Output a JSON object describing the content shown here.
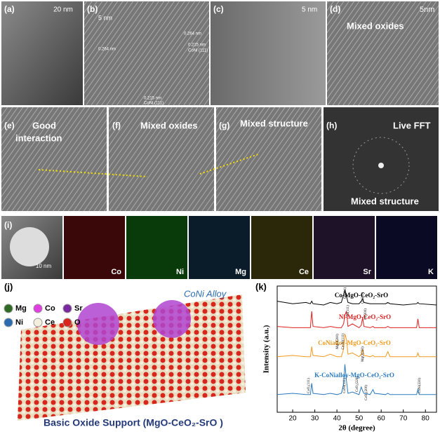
{
  "panels": {
    "a": {
      "label": "(a)",
      "scale": "20 nm"
    },
    "b": {
      "label": "(b)",
      "scale": "5 nm",
      "notes": [
        "0.264 nm",
        "0.215 nm",
        "CoNi (111)",
        "0.264 nm",
        "0.215 nm",
        "CoNi (111)"
      ]
    },
    "c": {
      "label": "(c)",
      "scale": "5 nm"
    },
    "d": {
      "label": "(d)",
      "scale": "5nm",
      "text": "Mixed oxides"
    },
    "e": {
      "label": "(e)",
      "text": [
        "Good",
        "interaction"
      ]
    },
    "f": {
      "label": "(f)",
      "text": "Mixed oxides"
    },
    "g": {
      "label": "(g)",
      "text": "Mixed structure"
    },
    "h": {
      "label": "(h)",
      "text": [
        "Live FFT",
        "Mixed structure"
      ]
    },
    "i": {
      "label": "(i)",
      "scale": "10 nm",
      "elements": [
        "Co",
        "Ni",
        "Mg",
        "Ce",
        "Sr",
        "K"
      ]
    },
    "j": {
      "label": "(j)",
      "legend": [
        "Mg",
        "Co",
        "Sr",
        "Ni",
        "Ce",
        "O"
      ],
      "alloy": "CoNi Alloy",
      "support": "Basic Oxide Support (MgO-CeO₂-SrO )"
    }
  },
  "chart_data": {
    "type": "line",
    "label": "(k)",
    "x_label": "2θ (degree)",
    "y_label": "Intensity (a.u.)",
    "x": [
      13,
      20,
      26,
      28,
      28.6,
      29.2,
      34,
      37,
      40,
      42,
      43,
      43.6,
      44.3,
      45,
      47,
      50,
      51,
      51.6,
      52.2,
      55,
      56.3,
      57,
      62,
      63,
      64,
      70,
      76,
      76.6,
      77.2,
      85
    ],
    "xlim": [
      13,
      85
    ],
    "xticks": [
      20,
      30,
      40,
      50,
      60,
      70,
      80
    ],
    "ylim": [
      0,
      100
    ],
    "series": [
      {
        "name": "Co-MgO-CeO₂-SrO",
        "color": "#000000",
        "values": [
          88,
          86,
          87,
          86,
          88,
          86,
          85,
          87,
          86,
          87,
          93,
          97,
          92,
          87,
          86,
          86,
          88,
          90,
          87,
          86,
          86,
          86,
          86,
          87,
          86,
          85,
          86,
          87,
          86,
          85
        ]
      },
      {
        "name": "Ni-MgO-CeO₂-SrO",
        "color": "#e02020",
        "values": [
          68,
          67,
          67,
          67,
          80,
          68,
          67,
          68,
          67,
          67,
          70,
          77,
          80,
          68,
          70,
          67,
          69,
          75,
          68,
          67,
          68,
          67,
          67,
          68,
          67,
          67,
          67,
          74,
          67,
          67
        ]
      },
      {
        "name": "CoNialloy-MgO-CeO₂-SrO",
        "color": "#f39a1e",
        "values": [
          44,
          45,
          44,
          44,
          52,
          45,
          44,
          46,
          44,
          44,
          50,
          62,
          58,
          46,
          47,
          44,
          46,
          50,
          45,
          44,
          45,
          44,
          44,
          48,
          44,
          44,
          44,
          47,
          44,
          44
        ]
      },
      {
        "name": "K-CoNialloy-MgO-CeO₂-SrO",
        "color": "#2b7bbf",
        "values": [
          14,
          15,
          14,
          14,
          23,
          15,
          14,
          15,
          14,
          15,
          22,
          38,
          25,
          15,
          16,
          14,
          20,
          17,
          15,
          14,
          18,
          15,
          14,
          15,
          14,
          14,
          14,
          18,
          14,
          14
        ]
      }
    ],
    "annotations": [
      "Co(111)",
      "Co(200)",
      "Ni(111)",
      "Ni(200)",
      "MgO(200)",
      "Co-Ni(111)",
      "MgO(220)",
      "CeO₂(111)",
      "CoNi(111)",
      "CeO₂(220)",
      "CeO₂(200)",
      "CoNi(220)"
    ]
  }
}
